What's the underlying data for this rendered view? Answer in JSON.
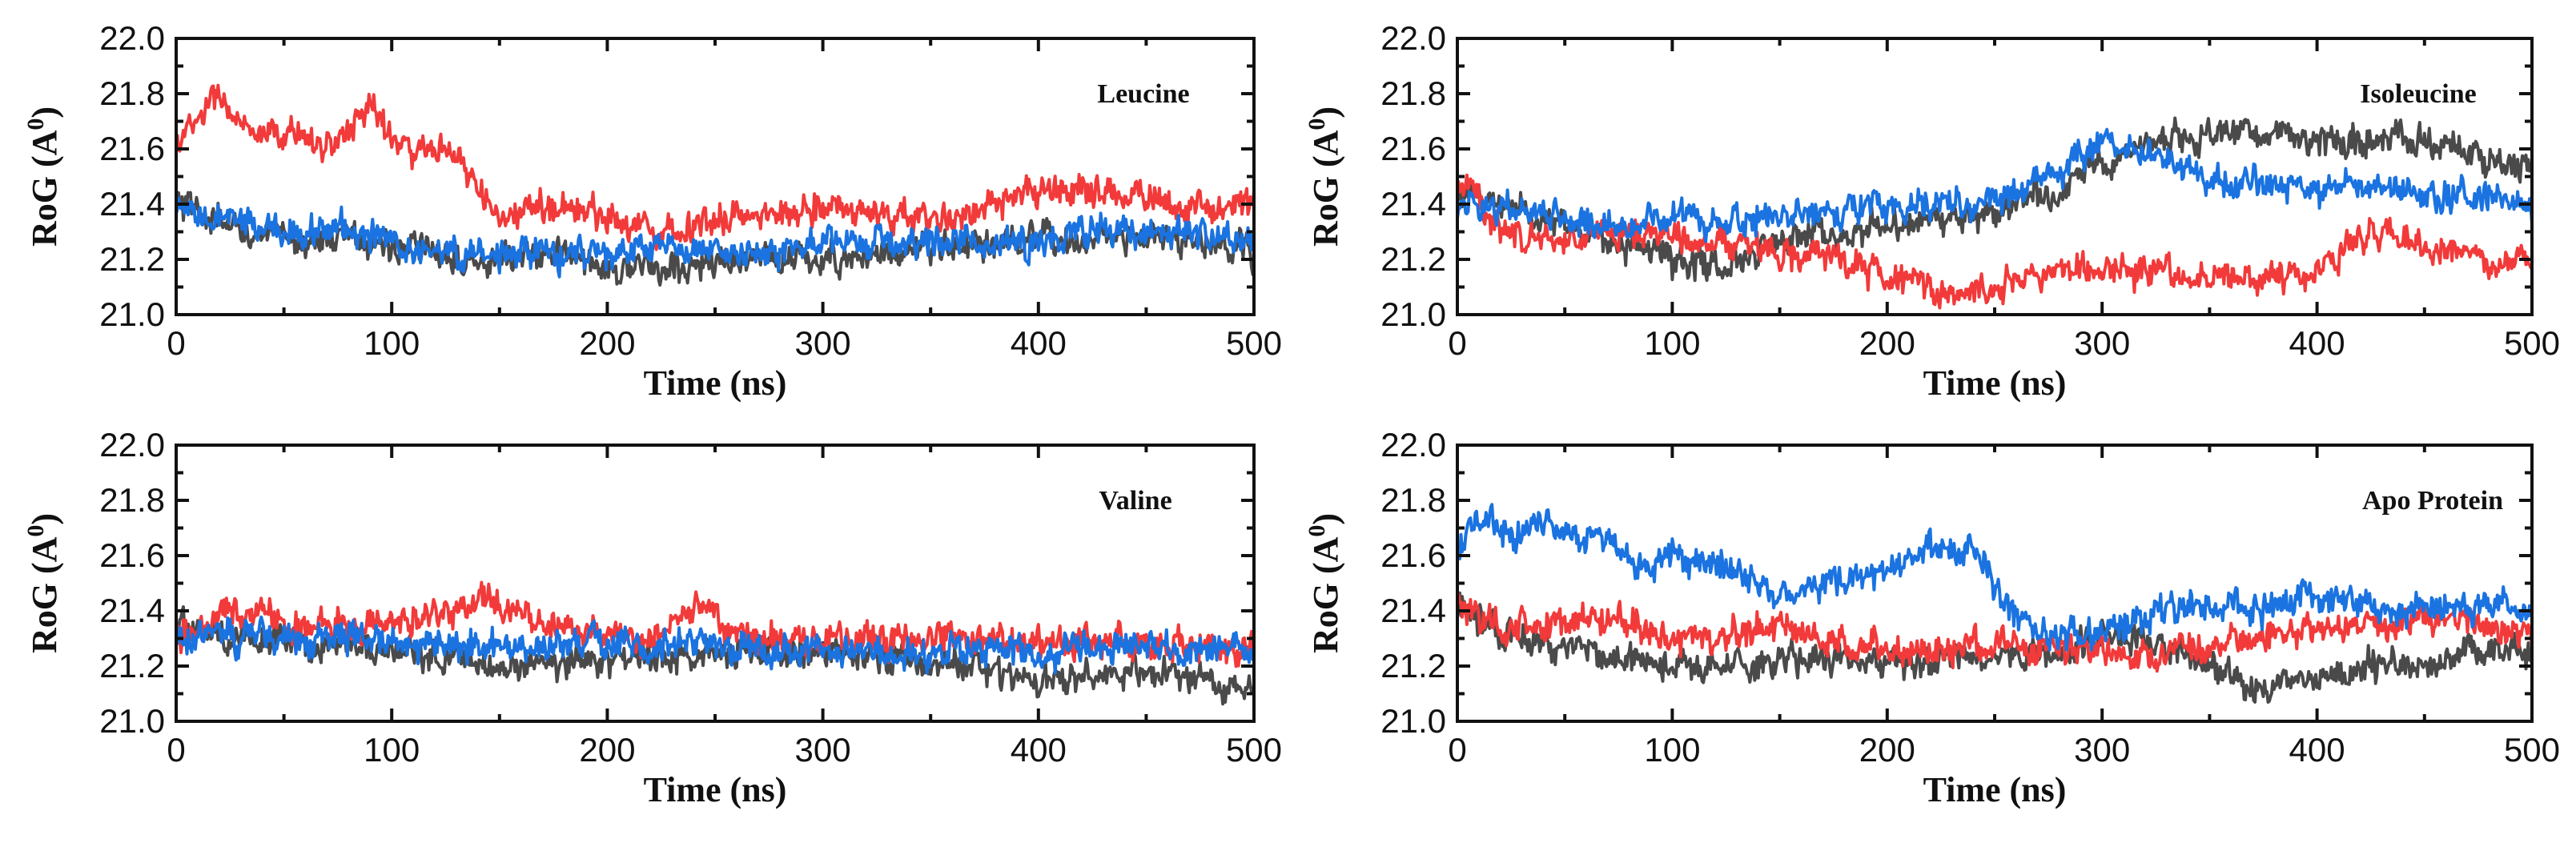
{
  "chart_data": [
    {
      "type": "line",
      "title": "Leucine",
      "xlabel": "Time (ns)",
      "ylabel": "RoG (A",
      "ylabel_sup": "0",
      "ylabel_close": ")",
      "xlim": [
        0,
        500
      ],
      "ylim": [
        21.0,
        22.0
      ],
      "xticks": [
        0,
        100,
        200,
        300,
        400,
        500
      ],
      "yticks": [
        21.0,
        21.2,
        21.4,
        21.6,
        21.8,
        22.0
      ],
      "ytick_labels": [
        "21.0",
        "21.2",
        "21.4",
        "21.6",
        "21.8",
        "22.0"
      ],
      "series": [
        {
          "name": "black",
          "color": "#4a4a4a",
          "x": [
            0,
            25,
            50,
            75,
            100,
            125,
            150,
            175,
            200,
            225,
            250,
            275,
            300,
            325,
            350,
            375,
            400,
            425,
            450,
            475,
            500
          ],
          "values": [
            21.4,
            21.32,
            21.27,
            21.28,
            21.25,
            21.22,
            21.2,
            21.22,
            21.18,
            21.16,
            21.19,
            21.2,
            21.2,
            21.22,
            21.24,
            21.25,
            21.26,
            21.28,
            21.27,
            21.26,
            21.22
          ]
        },
        {
          "name": "red",
          "color": "#f23a3a",
          "x": [
            0,
            10,
            20,
            30,
            40,
            50,
            60,
            70,
            80,
            90,
            100,
            110,
            120,
            130,
            140,
            150,
            175,
            200,
            225,
            250,
            275,
            300,
            325,
            350,
            375,
            400,
            425,
            450,
            475,
            500
          ],
          "values": [
            21.62,
            21.7,
            21.8,
            21.68,
            21.62,
            21.65,
            21.66,
            21.6,
            21.66,
            21.78,
            21.64,
            21.58,
            21.6,
            21.56,
            21.46,
            21.34,
            21.4,
            21.36,
            21.3,
            21.34,
            21.36,
            21.4,
            21.36,
            21.34,
            21.38,
            21.44,
            21.46,
            21.42,
            21.38,
            21.4
          ]
        },
        {
          "name": "blue",
          "color": "#1a73e0",
          "x": [
            0,
            25,
            50,
            75,
            100,
            125,
            150,
            175,
            200,
            225,
            250,
            275,
            300,
            325,
            350,
            375,
            400,
            425,
            450,
            475,
            500
          ],
          "values": [
            21.36,
            21.34,
            21.3,
            21.32,
            21.26,
            21.22,
            21.22,
            21.22,
            21.22,
            21.24,
            21.22,
            21.23,
            21.25,
            21.26,
            21.27,
            21.26,
            21.26,
            21.3,
            21.32,
            21.3,
            21.26
          ]
        }
      ]
    },
    {
      "type": "line",
      "title": "Isoleucine",
      "xlabel": "Time (ns)",
      "ylabel": "RoG (A",
      "ylabel_sup": "0",
      "ylabel_close": ")",
      "xlim": [
        0,
        500
      ],
      "ylim": [
        21.0,
        22.0
      ],
      "xticks": [
        0,
        100,
        200,
        300,
        400,
        500
      ],
      "yticks": [
        21.0,
        21.2,
        21.4,
        21.6,
        21.8,
        22.0
      ],
      "ytick_labels": [
        "21.0",
        "21.2",
        "21.4",
        "21.6",
        "21.8",
        "22.0"
      ],
      "series": [
        {
          "name": "black",
          "color": "#4a4a4a",
          "x": [
            0,
            25,
            50,
            75,
            100,
            125,
            150,
            175,
            200,
            225,
            250,
            275,
            300,
            325,
            350,
            375,
            400,
            425,
            450,
            475,
            500
          ],
          "values": [
            21.44,
            21.4,
            21.32,
            21.26,
            21.2,
            21.18,
            21.28,
            21.3,
            21.32,
            21.34,
            21.38,
            21.44,
            21.56,
            21.62,
            21.66,
            21.66,
            21.64,
            21.64,
            21.62,
            21.58,
            21.54
          ]
        },
        {
          "name": "red",
          "color": "#f23a3a",
          "x": [
            0,
            25,
            50,
            75,
            100,
            125,
            150,
            175,
            200,
            225,
            250,
            275,
            300,
            325,
            350,
            375,
            400,
            425,
            450,
            475,
            500
          ],
          "values": [
            21.5,
            21.28,
            21.28,
            21.3,
            21.3,
            21.26,
            21.22,
            21.2,
            21.14,
            21.08,
            21.1,
            21.16,
            21.18,
            21.16,
            21.14,
            21.14,
            21.16,
            21.3,
            21.24,
            21.2,
            21.18
          ]
        },
        {
          "name": "blue",
          "color": "#1a73e0",
          "x": [
            0,
            25,
            50,
            75,
            100,
            125,
            150,
            175,
            200,
            225,
            250,
            275,
            300,
            325,
            350,
            375,
            400,
            425,
            450,
            475,
            500
          ],
          "values": [
            21.4,
            21.38,
            21.34,
            21.32,
            21.36,
            21.34,
            21.36,
            21.38,
            21.4,
            21.4,
            21.42,
            21.5,
            21.62,
            21.56,
            21.5,
            21.48,
            21.44,
            21.48,
            21.42,
            21.44,
            21.38
          ]
        }
      ]
    },
    {
      "type": "line",
      "title": "Valine",
      "xlabel": "Time (ns)",
      "ylabel": "RoG (A",
      "ylabel_sup": "0",
      "ylabel_close": ")",
      "xlim": [
        0,
        500
      ],
      "ylim": [
        21.0,
        22.0
      ],
      "xticks": [
        0,
        100,
        200,
        300,
        400,
        500
      ],
      "yticks": [
        21.0,
        21.2,
        21.4,
        21.6,
        21.8,
        22.0
      ],
      "ytick_labels": [
        "21.0",
        "21.2",
        "21.4",
        "21.6",
        "21.8",
        "22.0"
      ],
      "series": [
        {
          "name": "black",
          "color": "#4a4a4a",
          "x": [
            0,
            25,
            50,
            75,
            100,
            125,
            150,
            175,
            200,
            225,
            250,
            275,
            300,
            325,
            350,
            375,
            400,
            425,
            450,
            475,
            500
          ],
          "values": [
            21.36,
            21.3,
            21.28,
            21.28,
            21.26,
            21.22,
            21.2,
            21.2,
            21.22,
            21.24,
            21.24,
            21.26,
            21.26,
            21.24,
            21.22,
            21.18,
            21.16,
            21.16,
            21.18,
            21.14,
            21.12
          ]
        },
        {
          "name": "red",
          "color": "#f23a3a",
          "x": [
            0,
            25,
            50,
            75,
            100,
            125,
            140,
            160,
            175,
            200,
            225,
            245,
            260,
            275,
            300,
            325,
            350,
            375,
            400,
            425,
            450,
            475,
            500
          ],
          "values": [
            21.3,
            21.4,
            21.36,
            21.34,
            21.36,
            21.4,
            21.46,
            21.38,
            21.36,
            21.3,
            21.32,
            21.42,
            21.3,
            21.3,
            21.3,
            21.28,
            21.3,
            21.3,
            21.28,
            21.3,
            21.28,
            21.28,
            21.26
          ]
        },
        {
          "name": "blue",
          "color": "#1a73e0",
          "x": [
            0,
            25,
            50,
            75,
            100,
            125,
            150,
            175,
            200,
            225,
            250,
            275,
            300,
            325,
            350,
            375,
            400,
            425,
            450,
            475,
            500
          ],
          "values": [
            21.3,
            21.3,
            21.3,
            21.32,
            21.3,
            21.28,
            21.26,
            21.28,
            21.28,
            21.28,
            21.28,
            21.26,
            21.26,
            21.24,
            21.26,
            21.26,
            21.24,
            21.26,
            21.26,
            21.26,
            21.22
          ]
        }
      ]
    },
    {
      "type": "line",
      "title": "Apo Protein",
      "xlabel": "Time (ns)",
      "ylabel": "RoG (A",
      "ylabel_sup": "0",
      "ylabel_close": ")",
      "xlim": [
        0,
        500
      ],
      "ylim": [
        21.0,
        22.0
      ],
      "xticks": [
        0,
        100,
        200,
        300,
        400,
        500
      ],
      "yticks": [
        21.0,
        21.2,
        21.4,
        21.6,
        21.8,
        22.0
      ],
      "ytick_labels": [
        "21.0",
        "21.2",
        "21.4",
        "21.6",
        "21.8",
        "22.0"
      ],
      "series": [
        {
          "name": "black",
          "color": "#4a4a4a",
          "x": [
            0,
            25,
            50,
            75,
            100,
            125,
            150,
            175,
            200,
            225,
            250,
            275,
            300,
            325,
            350,
            375,
            400,
            425,
            450,
            475,
            500
          ],
          "values": [
            21.42,
            21.3,
            21.26,
            21.22,
            21.22,
            21.2,
            21.22,
            21.24,
            21.22,
            21.22,
            21.24,
            21.24,
            21.32,
            21.28,
            21.22,
            21.1,
            21.16,
            21.2,
            21.22,
            21.24,
            21.24
          ]
        },
        {
          "name": "red",
          "color": "#f23a3a",
          "x": [
            0,
            25,
            50,
            75,
            100,
            125,
            150,
            175,
            200,
            225,
            250,
            275,
            300,
            325,
            350,
            375,
            400,
            425,
            450,
            475,
            500
          ],
          "values": [
            21.42,
            21.34,
            21.36,
            21.38,
            21.3,
            21.3,
            21.34,
            21.3,
            21.26,
            21.26,
            21.28,
            21.28,
            21.26,
            21.26,
            21.26,
            21.3,
            21.34,
            21.36,
            21.38,
            21.36,
            21.3
          ]
        },
        {
          "name": "blue",
          "color": "#1a73e0",
          "x": [
            0,
            10,
            20,
            30,
            40,
            50,
            60,
            70,
            80,
            90,
            100,
            125,
            150,
            175,
            200,
            225,
            240,
            260,
            275,
            300,
            325,
            350,
            375,
            400,
            425,
            450,
            475,
            500
          ],
          "values": [
            21.6,
            21.74,
            21.7,
            21.66,
            21.72,
            21.68,
            21.66,
            21.7,
            21.58,
            21.54,
            21.6,
            21.56,
            21.46,
            21.5,
            21.56,
            21.64,
            21.62,
            21.4,
            21.3,
            21.32,
            21.4,
            21.42,
            21.4,
            21.44,
            21.42,
            21.4,
            21.42,
            21.4
          ]
        }
      ]
    }
  ]
}
